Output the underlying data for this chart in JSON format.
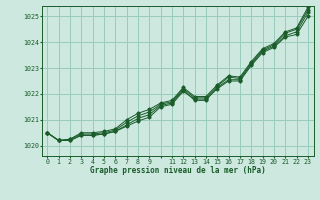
{
  "title": "Graphe pression niveau de la mer (hPa)",
  "bg_color": "#cce8df",
  "grid_color": "#99ccbb",
  "line_color": "#1a5c2a",
  "ylim": [
    1019.6,
    1025.4
  ],
  "yticks": [
    1020,
    1021,
    1022,
    1023,
    1024,
    1025
  ],
  "series": [
    [
      1020.5,
      1020.2,
      1020.2,
      1020.4,
      1020.4,
      1020.45,
      1020.55,
      1020.75,
      1020.95,
      1021.1,
      1021.5,
      1021.6,
      1022.1,
      1021.8,
      1021.8,
      1022.2,
      1022.5,
      1022.5,
      1023.1,
      1023.6,
      1023.8,
      1024.2,
      1024.3,
      1025.0
    ],
    [
      1020.5,
      1020.2,
      1020.2,
      1020.4,
      1020.4,
      1020.45,
      1020.55,
      1020.8,
      1021.05,
      1021.2,
      1021.55,
      1021.65,
      1022.15,
      1021.75,
      1021.75,
      1022.25,
      1022.55,
      1022.55,
      1023.15,
      1023.65,
      1023.85,
      1024.25,
      1024.4,
      1025.15
    ],
    [
      1020.5,
      1020.2,
      1020.25,
      1020.45,
      1020.45,
      1020.5,
      1020.6,
      1020.9,
      1021.15,
      1021.3,
      1021.6,
      1021.7,
      1022.2,
      1021.85,
      1021.85,
      1022.3,
      1022.65,
      1022.6,
      1023.2,
      1023.7,
      1023.9,
      1024.35,
      1024.5,
      1025.25
    ],
    [
      1020.5,
      1020.2,
      1020.25,
      1020.5,
      1020.5,
      1020.55,
      1020.65,
      1021.0,
      1021.25,
      1021.4,
      1021.65,
      1021.75,
      1022.25,
      1021.9,
      1021.9,
      1022.35,
      1022.7,
      1022.65,
      1023.25,
      1023.75,
      1023.95,
      1024.4,
      1024.55,
      1025.35
    ]
  ]
}
